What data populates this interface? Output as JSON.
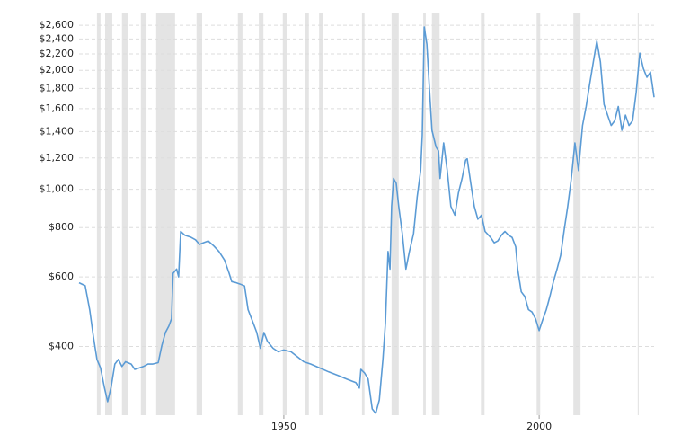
{
  "chart_data": {
    "type": "line",
    "ylog": true,
    "grid": true,
    "xlim": [
      1909.9,
      2022.5
    ],
    "xticks": [
      1950,
      2000
    ],
    "ylim": [
      268,
      2800
    ],
    "yticks": [
      {
        "value": 400,
        "label": "$400"
      },
      {
        "value": 600,
        "label": "$600"
      },
      {
        "value": 800,
        "label": "$800"
      },
      {
        "value": 1000,
        "label": "$1,000"
      },
      {
        "value": 1200,
        "label": "$1,200"
      },
      {
        "value": 1400,
        "label": "$1,400"
      },
      {
        "value": 1600,
        "label": "$1,600"
      },
      {
        "value": 1800,
        "label": "$1,800"
      },
      {
        "value": 2000,
        "label": "$2,000"
      },
      {
        "value": 2200,
        "label": "$2,200"
      },
      {
        "value": 2400,
        "label": "$2,400"
      },
      {
        "value": 2600,
        "label": "$2,600"
      }
    ],
    "recession_color": "#e4e4e4",
    "recessions": [
      [
        1913.4,
        1914.1
      ],
      [
        1915.0,
        1916.4
      ],
      [
        1918.3,
        1919.5
      ],
      [
        1922.0,
        1923.1
      ],
      [
        1925.0,
        1928.7
      ],
      [
        1932.9,
        1934.0
      ],
      [
        1941.0,
        1941.9
      ],
      [
        1945.1,
        1946.0
      ],
      [
        1949.8,
        1950.7
      ],
      [
        1954.2,
        1954.9
      ],
      [
        1956.9,
        1957.7
      ],
      [
        1965.3,
        1965.8
      ],
      [
        1971.1,
        1972.5
      ],
      [
        1977.3,
        1977.8
      ],
      [
        1979.0,
        1980.5
      ],
      [
        1988.6,
        1989.3
      ],
      [
        1999.5,
        2000.2
      ],
      [
        2006.7,
        2008.1
      ],
      [
        2019.3,
        2019.5
      ]
    ],
    "color": "#5b9bd5",
    "x": [
      1909.9,
      1911.1,
      1912.0,
      1912.7,
      1913.4,
      1914.1,
      1914.8,
      1915.5,
      1916.2,
      1916.9,
      1917.6,
      1918.3,
      1919.0,
      1920.1,
      1920.8,
      1921.7,
      1922.5,
      1923.4,
      1924.3,
      1925.4,
      1926.1,
      1926.8,
      1927.5,
      1928.0,
      1928.3,
      1929.0,
      1929.4,
      1929.8,
      1930.6,
      1931.7,
      1932.7,
      1933.5,
      1934.2,
      1935.2,
      1936.3,
      1937.3,
      1938.4,
      1939.3,
      1939.8,
      1940.5,
      1941.5,
      1942.3,
      1943.0,
      1944.0,
      1944.7,
      1945.4,
      1946.1,
      1946.8,
      1947.9,
      1948.9,
      1950.0,
      1951.4,
      1952.5,
      1953.9,
      1955.3,
      1957.0,
      1958.8,
      1960.6,
      1962.3,
      1964.1,
      1964.8,
      1965.1,
      1965.8,
      1966.5,
      1967.3,
      1968.0,
      1968.7,
      1969.4,
      1969.9,
      1970.4,
      1970.8,
      1971.1,
      1971.5,
      1972.0,
      1972.5,
      1973.2,
      1973.9,
      1974.6,
      1975.4,
      1976.1,
      1976.8,
      1977.1,
      1977.5,
      1978.0,
      1978.5,
      1979.0,
      1979.8,
      1980.3,
      1980.6,
      1981.3,
      1982.0,
      1982.7,
      1983.5,
      1984.2,
      1984.9,
      1985.6,
      1985.9,
      1986.6,
      1987.3,
      1988.0,
      1988.7,
      1989.4,
      1990.5,
      1991.2,
      1991.9,
      1992.6,
      1993.3,
      1994.0,
      1994.7,
      1995.4,
      1995.8,
      1996.5,
      1997.2,
      1997.9,
      1998.6,
      1999.3,
      2000.0,
      2000.7,
      2001.4,
      2002.1,
      2002.8,
      2003.5,
      2004.2,
      2004.9,
      2005.6,
      2006.3,
      2007.0,
      2007.7,
      2008.5,
      2009.2,
      2009.9,
      2010.6,
      2011.3,
      2012.0,
      2012.7,
      2013.4,
      2014.1,
      2014.8,
      2015.5,
      2016.2,
      2016.9,
      2017.6,
      2018.3,
      2019.0,
      2019.7,
      2020.4,
      2021.1,
      2021.8,
      2022.5
    ],
    "values": [
      580,
      570,
      494,
      424,
      371,
      353,
      317,
      290,
      317,
      361,
      371,
      356,
      366,
      361,
      350,
      353,
      356,
      361,
      361,
      364,
      402,
      434,
      451,
      470,
      612,
      628,
      600,
      782,
      765,
      757,
      745,
      725,
      732,
      740,
      718,
      696,
      661,
      612,
      584,
      581,
      575,
      569,
      496,
      459,
      434,
      396,
      434,
      412,
      396,
      388,
      392,
      388,
      378,
      366,
      361,
      353,
      345,
      338,
      331,
      324,
      314,
      350,
      343,
      331,
      278,
      271,
      293,
      371,
      459,
      696,
      628,
      905,
      1065,
      1035,
      905,
      772,
      628,
      696,
      772,
      955,
      1115,
      1370,
      2575,
      2330,
      1810,
      1410,
      1280,
      1250,
      1065,
      1310,
      1115,
      905,
      860,
      980,
      1065,
      1185,
      1195,
      1035,
      905,
      840,
      860,
      782,
      755,
      732,
      740,
      765,
      782,
      765,
      755,
      715,
      628,
      550,
      535,
      496,
      489,
      470,
      439,
      468,
      496,
      535,
      584,
      628,
      680,
      790,
      905,
      1065,
      1310,
      1115,
      1450,
      1620,
      1850,
      2100,
      2370,
      2100,
      1640,
      1540,
      1450,
      1490,
      1620,
      1410,
      1540,
      1450,
      1490,
      1760,
      2210,
      2020,
      1920,
      1980,
      1710
    ]
  }
}
